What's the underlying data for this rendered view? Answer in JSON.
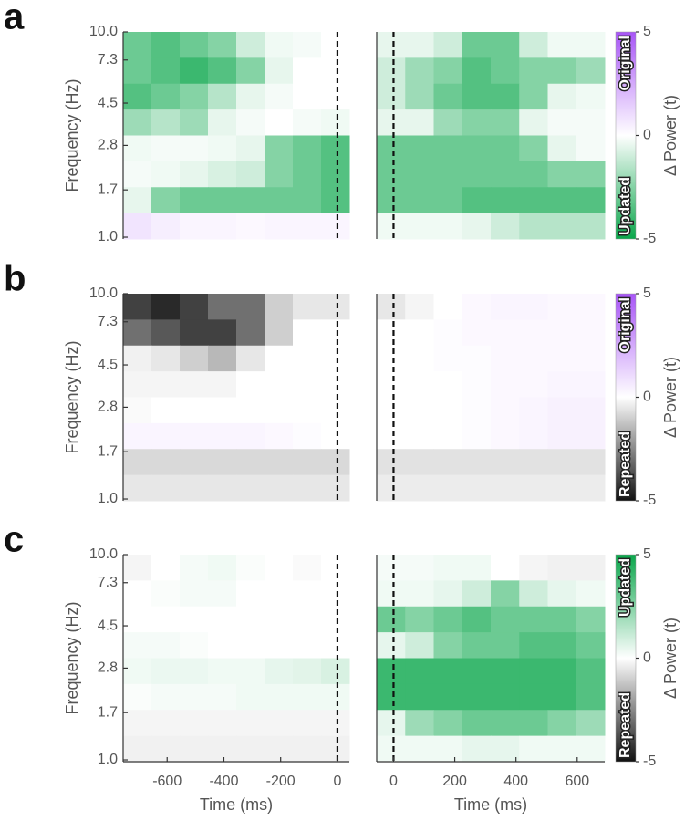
{
  "chart_data": [
    {
      "type": "heatmap",
      "panel_label": "a",
      "ylabel": "Frequency (Hz)",
      "xlim": [
        -755,
        42
      ],
      "ylim": [
        0.98,
        10
      ],
      "log_y": true,
      "yticks": [
        {
          "value": 1,
          "label": "1.0"
        },
        1.7,
        2.8,
        4.5,
        7.3,
        {
          "value": 10,
          "label": "10.0"
        }
      ],
      "vline": 0,
      "clim": [
        -5,
        5
      ],
      "colors": [
        "#0aa64b",
        "#ffffff",
        "#a855f7"
      ],
      "z": [
        [
          -3,
          -3.5,
          -3,
          -2.5,
          -1,
          -0.3,
          -0.2,
          0
        ],
        [
          -3,
          -3.5,
          -4,
          -3.5,
          -2.5,
          -0.5,
          0,
          0
        ],
        [
          -3.5,
          -3,
          -2.5,
          -1.5,
          -0.5,
          -0.2,
          0,
          0
        ],
        [
          -2,
          -1.5,
          -2,
          -0.5,
          -0.2,
          0,
          -0.2,
          -0.3
        ],
        [
          -0.3,
          -0.2,
          -0.2,
          -0.3,
          -0.5,
          -2.5,
          -3,
          -3.5
        ],
        [
          -0.2,
          -0.3,
          -0.5,
          -0.8,
          -1,
          -2.5,
          -3,
          -3.5
        ],
        [
          -0.5,
          -2.5,
          -3,
          -3,
          -3,
          -3,
          -3,
          -3.5
        ],
        [
          0.8,
          0.5,
          0.3,
          0.3,
          0.2,
          0.3,
          0.3,
          0.3
        ]
      ]
    },
    {
      "type": "heatmap",
      "xlim": [
        -55,
        690
      ],
      "ylim": [
        0.98,
        10
      ],
      "log_y": true,
      "vline": 0,
      "clim": [
        -5,
        5
      ],
      "colors": [
        "#0aa64b",
        "#ffffff",
        "#a855f7"
      ],
      "colorbar": {
        "label": "Δ Power (t)",
        "ticks": [
          5,
          0,
          -5
        ],
        "high_label": "Original",
        "low_label": "Updated"
      },
      "z": [
        [
          -0.5,
          -0.5,
          -1,
          -3,
          -3,
          -1,
          -0.3,
          -0.3
        ],
        [
          -1,
          -2,
          -2.5,
          -3.5,
          -3,
          -2.5,
          -2.5,
          -2
        ],
        [
          -1,
          -2,
          -3,
          -3.5,
          -3.5,
          -2.5,
          -0.5,
          -0.3
        ],
        [
          -0.5,
          -0.5,
          -2,
          -2.5,
          -2.5,
          -0.5,
          -0.2,
          -0.2
        ],
        [
          -3,
          -3,
          -3,
          -3,
          -3,
          -2.5,
          -0.5,
          -0.2
        ],
        [
          -3,
          -3,
          -3,
          -3,
          -3,
          -3,
          -2.5,
          -2.5
        ],
        [
          -3,
          -3,
          -3,
          -3.5,
          -3.5,
          -3.5,
          -3.5,
          -3.5
        ],
        [
          -0.3,
          -0.3,
          -0.3,
          -0.5,
          -1,
          -1.5,
          -1.5,
          -1.5
        ]
      ]
    },
    {
      "type": "heatmap",
      "panel_label": "b",
      "ylabel": "Frequency (Hz)",
      "xlim": [
        -755,
        42
      ],
      "ylim": [
        0.98,
        10
      ],
      "log_y": true,
      "yticks": [
        {
          "value": 1,
          "label": "1.0"
        },
        1.7,
        2.8,
        4.5,
        7.3,
        {
          "value": 10,
          "label": "10.0"
        }
      ],
      "vline": 0,
      "clim": [
        -5,
        5
      ],
      "colors": [
        "#111111",
        "#ffffff",
        "#a855f7"
      ],
      "z": [
        [
          -4,
          -4.5,
          -4,
          -3,
          -3,
          -1,
          -0.5,
          -0.5
        ],
        [
          -3,
          -3.5,
          -4,
          -4,
          -3,
          -1,
          0,
          0
        ],
        [
          -0.3,
          -0.5,
          -1,
          -1.5,
          -0.5,
          0,
          0,
          0
        ],
        [
          -0.2,
          -0.2,
          -0.2,
          -0.2,
          0,
          0,
          0,
          0
        ],
        [
          -0.1,
          0,
          0,
          0,
          0,
          0,
          0,
          0
        ],
        [
          0.3,
          0.3,
          0.3,
          0.3,
          0.3,
          0.2,
          0.1,
          0
        ],
        [
          -0.8,
          -0.8,
          -0.8,
          -0.8,
          -0.8,
          -0.8,
          -0.8,
          -0.8
        ],
        [
          -0.5,
          -0.5,
          -0.5,
          -0.5,
          -0.5,
          -0.5,
          -0.5,
          -0.5
        ]
      ]
    },
    {
      "type": "heatmap",
      "xlim": [
        -55,
        690
      ],
      "ylim": [
        0.98,
        10
      ],
      "log_y": true,
      "vline": 0,
      "clim": [
        -5,
        5
      ],
      "colors": [
        "#111111",
        "#ffffff",
        "#a855f7"
      ],
      "colorbar": {
        "label": "Δ Power (t)",
        "ticks": [
          5,
          0,
          -5
        ],
        "high_label": "Original",
        "low_label": "Repeated"
      },
      "z": [
        [
          -0.5,
          -0.2,
          0,
          0.2,
          0.3,
          0.3,
          0.2,
          0.2
        ],
        [
          0,
          0,
          0.1,
          0.2,
          0.2,
          0.2,
          0.2,
          0.2
        ],
        [
          0,
          0,
          0.1,
          0.1,
          0.2,
          0.2,
          0.2,
          0.2
        ],
        [
          0,
          0,
          0,
          0.1,
          0.2,
          0.2,
          0.3,
          0.3
        ],
        [
          0,
          0,
          0,
          0.1,
          0.2,
          0.3,
          0.4,
          0.4
        ],
        [
          0,
          0,
          0,
          0.1,
          0.2,
          0.3,
          0.4,
          0.4
        ],
        [
          -0.6,
          -0.6,
          -0.6,
          -0.6,
          -0.6,
          -0.6,
          -0.6,
          -0.6
        ],
        [
          -0.4,
          -0.4,
          -0.4,
          -0.4,
          -0.4,
          -0.4,
          -0.4,
          -0.4
        ]
      ]
    },
    {
      "type": "heatmap",
      "panel_label": "c",
      "ylabel": "Frequency (Hz)",
      "xlabel": "Time (ms)",
      "xlim": [
        -755,
        42
      ],
      "ylim": [
        0.98,
        10
      ],
      "log_y": true,
      "yticks": [
        {
          "value": 1,
          "label": "1.0"
        },
        1.7,
        2.8,
        4.5,
        7.3,
        {
          "value": 10,
          "label": "10.0"
        }
      ],
      "xticks": [
        -600,
        -400,
        -200,
        0
      ],
      "vline": 0,
      "clim": [
        -5,
        5
      ],
      "colors": [
        "#111111",
        "#ffffff",
        "#0aa64b"
      ],
      "z": [
        [
          -0.2,
          0,
          0.2,
          0.3,
          0.1,
          0,
          -0.1,
          0
        ],
        [
          0,
          0.1,
          0.2,
          0.2,
          0,
          0,
          0,
          0
        ],
        [
          0,
          0,
          0,
          0,
          0,
          0,
          0,
          0
        ],
        [
          0.2,
          0.2,
          0.1,
          0,
          0,
          0,
          0,
          0
        ],
        [
          0.3,
          0.4,
          0.4,
          0.3,
          0.3,
          0.5,
          0.6,
          0.8
        ],
        [
          0.1,
          0.2,
          0.2,
          0.2,
          0.3,
          0.3,
          0.3,
          0.3
        ],
        [
          -0.2,
          -0.2,
          -0.2,
          -0.2,
          -0.2,
          -0.2,
          -0.2,
          -0.2
        ],
        [
          -0.3,
          -0.3,
          -0.3,
          -0.3,
          -0.3,
          -0.3,
          -0.3,
          -0.3
        ]
      ]
    },
    {
      "type": "heatmap",
      "xlabel": "Time (ms)",
      "xlim": [
        -55,
        690
      ],
      "ylim": [
        0.98,
        10
      ],
      "log_y": true,
      "xticks": [
        0,
        200,
        400,
        600
      ],
      "vline": 0,
      "clim": [
        -5,
        5
      ],
      "colors": [
        "#111111",
        "#ffffff",
        "#0aa64b"
      ],
      "colorbar": {
        "label": "Δ Power (t)",
        "ticks": [
          5,
          0,
          -5
        ],
        "high_label": "Updated",
        "low_label": "Repeated"
      },
      "z": [
        [
          0.2,
          0.2,
          0.3,
          0.3,
          0,
          -0.2,
          -0.3,
          -0.3
        ],
        [
          0.3,
          0.3,
          0.5,
          1,
          2.5,
          1,
          0.5,
          0.3
        ],
        [
          3,
          2.5,
          3,
          3.5,
          3,
          3,
          3,
          2.5
        ],
        [
          0.5,
          1,
          2.5,
          3,
          3,
          3.5,
          3.5,
          3
        ],
        [
          4,
          4,
          4,
          4,
          4,
          4,
          4,
          3.5
        ],
        [
          4,
          4,
          4,
          4,
          4,
          4,
          4,
          3.5
        ],
        [
          0.5,
          2,
          2.5,
          3,
          3,
          3,
          2.5,
          2
        ],
        [
          0.3,
          0.3,
          0.3,
          0.5,
          0.5,
          0.3,
          0.3,
          0.3
        ]
      ]
    }
  ]
}
